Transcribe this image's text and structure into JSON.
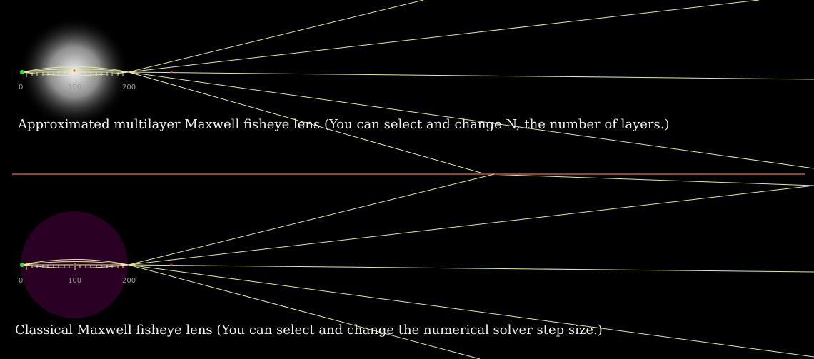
{
  "scenes": [
    {
      "id": "multilayer",
      "caption": "Approximated multilayer Maxwell fisheye lens (You can select and change N, the number of layers.)",
      "lens_style": "radial-gradient",
      "ruler_ticks": [
        "0",
        "100",
        "200"
      ]
    },
    {
      "id": "classical",
      "caption": "Classical Maxwell fisheye lens (You can select and change the numerical solver step size.)",
      "lens_style": "solid",
      "ruler_ticks": [
        "0",
        "100",
        "200"
      ]
    }
  ],
  "colors": {
    "background": "#000000",
    "ray": "#e8e6a0",
    "mirror": "#8a4a2a",
    "lens_solid": "#2a0025",
    "source_point": "#33dd33",
    "caption": "#f2f2f2"
  }
}
